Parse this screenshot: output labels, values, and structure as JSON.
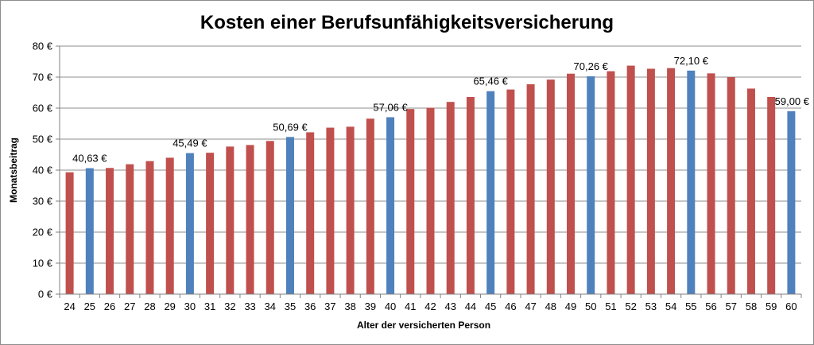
{
  "chart_data": {
    "type": "bar",
    "title": "Kosten einer Berufsunfähigkeitsversicherung",
    "xlabel": "Alter der versicherten Person",
    "ylabel": "Monatsbeitrag",
    "ylim": [
      0,
      80
    ],
    "y_ticks": [
      "0 €",
      "10 €",
      "20 €",
      "30 €",
      "40 €",
      "50 €",
      "60 €",
      "70 €",
      "80 €"
    ],
    "grid": true,
    "legend": "none",
    "categories": [
      "24",
      "25",
      "26",
      "27",
      "28",
      "29",
      "30",
      "31",
      "32",
      "33",
      "34",
      "35",
      "36",
      "37",
      "38",
      "39",
      "40",
      "41",
      "42",
      "43",
      "44",
      "45",
      "46",
      "47",
      "48",
      "49",
      "50",
      "51",
      "52",
      "53",
      "54",
      "55",
      "56",
      "57",
      "58",
      "59",
      "60"
    ],
    "values": [
      39.3,
      40.63,
      40.7,
      41.9,
      42.9,
      44.0,
      45.49,
      45.6,
      47.6,
      48.1,
      49.4,
      50.69,
      52.2,
      53.7,
      54.0,
      56.6,
      57.06,
      59.7,
      60.1,
      62.0,
      63.6,
      65.46,
      66.0,
      67.7,
      69.2,
      71.1,
      70.26,
      71.9,
      73.7,
      72.7,
      72.9,
      72.1,
      71.2,
      70.0,
      66.3,
      63.6,
      59.0
    ],
    "highlighted_indices": [
      1,
      6,
      11,
      16,
      21,
      26,
      31,
      36
    ],
    "data_labels": [
      {
        "index": 1,
        "text": "40,63 €"
      },
      {
        "index": 6,
        "text": "45,49 €"
      },
      {
        "index": 11,
        "text": "50,69 €"
      },
      {
        "index": 16,
        "text": "57,06 €"
      },
      {
        "index": 21,
        "text": "65,46 €"
      },
      {
        "index": 26,
        "text": "70,26 €"
      },
      {
        "index": 31,
        "text": "72,10 €"
      },
      {
        "index": 36,
        "text": "59,00 €"
      }
    ],
    "colors": {
      "bar": "#c0504d",
      "highlight": "#4f81bd",
      "grid": "#8c8c8c",
      "axis": "#808080"
    }
  }
}
